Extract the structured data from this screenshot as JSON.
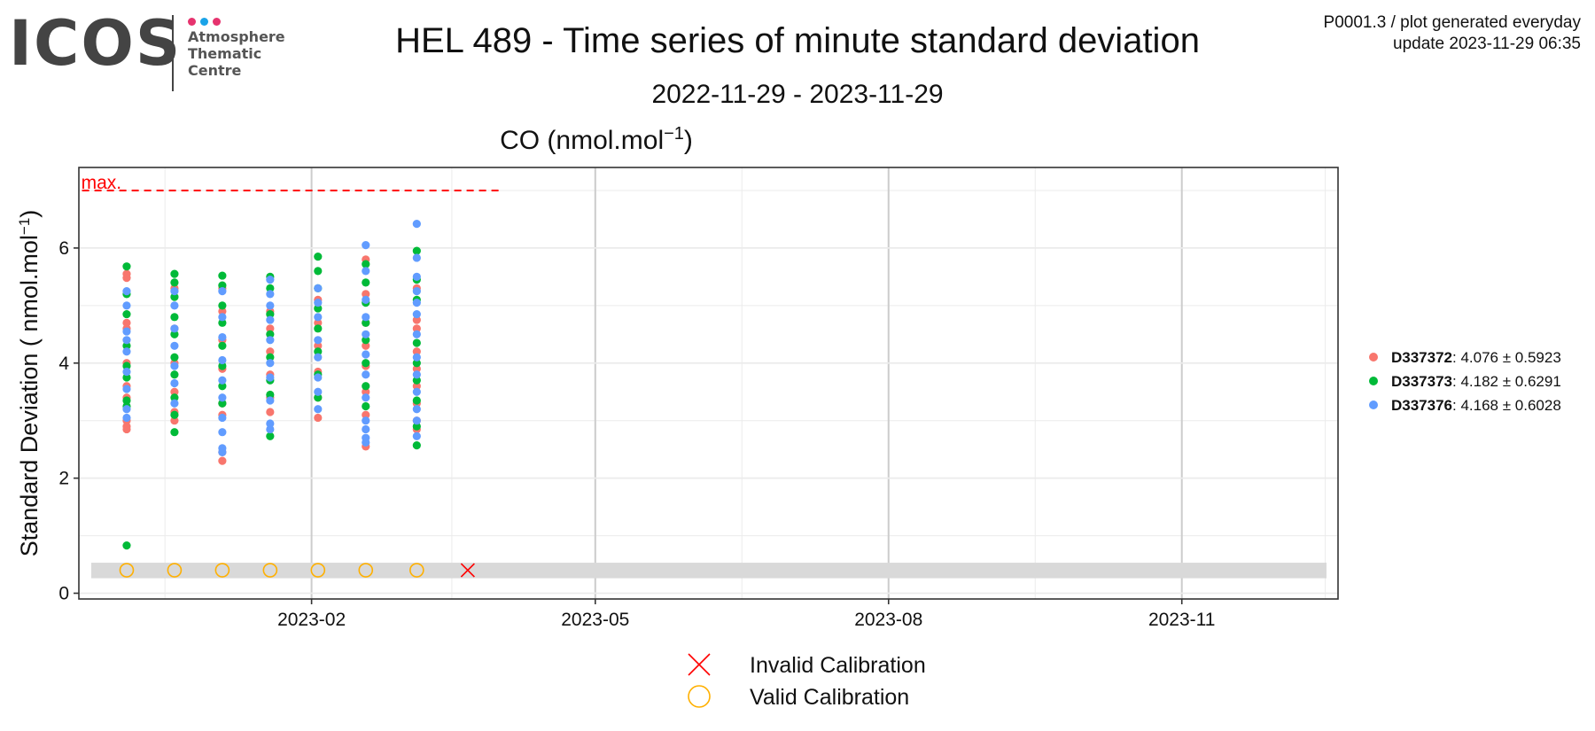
{
  "logo": {
    "wordmark": "ICOS",
    "line1": "Atmosphere",
    "line2": "Thematic",
    "line3": "Centre",
    "dot_colors": [
      "#e6336e",
      "#1aa3e8",
      "#e6336e"
    ]
  },
  "header": {
    "title": "HEL 489 - Time series of minute standard deviation",
    "subtitle": "2022-11-29 - 2023-11-29",
    "corner_line1": "P0001.3 / plot generated everyday",
    "corner_line2": "update  2023-11-29 06:35"
  },
  "chart_data": {
    "type": "scatter",
    "title": "CO (nmol.mol",
    "title_superscript": "−1",
    "title_suffix": ")",
    "ylabel": "Standard Deviation ( nmol.mol",
    "ylabel_superscript": "−1",
    "ylabel_suffix": ")",
    "xlim": [
      "2022-11-20",
      "2023-12-20"
    ],
    "ylim": [
      -0.1,
      7.4
    ],
    "x_ticks": [
      "2023-02-01",
      "2023-05-01",
      "2023-08-01",
      "2023-11-01"
    ],
    "x_tick_labels": [
      "2023-02",
      "2023-05",
      "2023-08",
      "2023-11"
    ],
    "y_ticks": [
      0,
      2,
      4,
      6
    ],
    "grid": true,
    "legend_position": "right",
    "max_line": {
      "label": "max.",
      "y": 7.0,
      "x_start": "2022-11-21",
      "x_end": "2023-04-01",
      "color": "#ff0000"
    },
    "calibration_band": {
      "y_min": 0.26,
      "y_max": 0.53,
      "color": "#d9d9d9"
    },
    "series": [
      {
        "name": "D337372",
        "stats": ": 4.076 ± 0.5923",
        "color": "#f8766d",
        "points": [
          [
            "2022-12-05",
            5.55
          ],
          [
            "2022-12-05",
            5.48
          ],
          [
            "2022-12-05",
            4.7
          ],
          [
            "2022-12-05",
            4.6
          ],
          [
            "2022-12-05",
            4.0
          ],
          [
            "2022-12-05",
            3.6
          ],
          [
            "2022-12-05",
            3.4
          ],
          [
            "2022-12-05",
            3.0
          ],
          [
            "2022-12-05",
            2.9
          ],
          [
            "2022-12-05",
            2.85
          ],
          [
            "2022-12-20",
            5.3
          ],
          [
            "2022-12-20",
            4.6
          ],
          [
            "2022-12-20",
            4.0
          ],
          [
            "2022-12-20",
            3.5
          ],
          [
            "2022-12-20",
            3.15
          ],
          [
            "2022-12-20",
            3.0
          ],
          [
            "2023-01-04",
            5.3
          ],
          [
            "2023-01-04",
            4.9
          ],
          [
            "2023-01-04",
            4.4
          ],
          [
            "2023-01-04",
            3.9
          ],
          [
            "2023-01-04",
            3.3
          ],
          [
            "2023-01-04",
            3.1
          ],
          [
            "2023-01-04",
            2.45
          ],
          [
            "2023-01-04",
            2.3
          ],
          [
            "2023-01-19",
            4.9
          ],
          [
            "2023-01-19",
            4.6
          ],
          [
            "2023-01-19",
            4.2
          ],
          [
            "2023-01-19",
            3.8
          ],
          [
            "2023-01-19",
            3.4
          ],
          [
            "2023-01-19",
            3.15
          ],
          [
            "2023-02-03",
            5.1
          ],
          [
            "2023-02-03",
            4.7
          ],
          [
            "2023-02-03",
            4.3
          ],
          [
            "2023-02-03",
            3.85
          ],
          [
            "2023-02-03",
            3.4
          ],
          [
            "2023-02-03",
            3.05
          ],
          [
            "2023-02-18",
            5.8
          ],
          [
            "2023-02-18",
            5.2
          ],
          [
            "2023-02-18",
            4.7
          ],
          [
            "2023-02-18",
            4.3
          ],
          [
            "2023-02-18",
            3.95
          ],
          [
            "2023-02-18",
            3.5
          ],
          [
            "2023-02-18",
            3.1
          ],
          [
            "2023-02-18",
            2.55
          ],
          [
            "2023-03-06",
            5.3
          ],
          [
            "2023-03-06",
            4.75
          ],
          [
            "2023-03-06",
            4.6
          ],
          [
            "2023-03-06",
            4.2
          ],
          [
            "2023-03-06",
            3.9
          ],
          [
            "2023-03-06",
            3.6
          ],
          [
            "2023-03-06",
            3.3
          ],
          [
            "2023-03-06",
            3.0
          ],
          [
            "2023-03-06",
            2.85
          ]
        ]
      },
      {
        "name": "D337373",
        "stats": ": 4.182 ± 0.6291",
        "color": "#00ba38",
        "points": [
          [
            "2022-12-05",
            5.68
          ],
          [
            "2022-12-05",
            5.2
          ],
          [
            "2022-12-05",
            4.85
          ],
          [
            "2022-12-05",
            4.3
          ],
          [
            "2022-12-05",
            3.95
          ],
          [
            "2022-12-05",
            3.75
          ],
          [
            "2022-12-05",
            3.35
          ],
          [
            "2022-12-05",
            3.25
          ],
          [
            "2022-12-05",
            0.83
          ],
          [
            "2022-12-20",
            5.55
          ],
          [
            "2022-12-20",
            5.4
          ],
          [
            "2022-12-20",
            5.15
          ],
          [
            "2022-12-20",
            4.8
          ],
          [
            "2022-12-20",
            4.5
          ],
          [
            "2022-12-20",
            4.1
          ],
          [
            "2022-12-20",
            3.8
          ],
          [
            "2022-12-20",
            3.4
          ],
          [
            "2022-12-20",
            3.1
          ],
          [
            "2022-12-20",
            2.8
          ],
          [
            "2023-01-04",
            5.52
          ],
          [
            "2023-01-04",
            5.35
          ],
          [
            "2023-01-04",
            5.0
          ],
          [
            "2023-01-04",
            4.7
          ],
          [
            "2023-01-04",
            4.3
          ],
          [
            "2023-01-04",
            3.95
          ],
          [
            "2023-01-04",
            3.6
          ],
          [
            "2023-01-04",
            3.3
          ],
          [
            "2023-01-19",
            5.5
          ],
          [
            "2023-01-19",
            5.3
          ],
          [
            "2023-01-19",
            4.85
          ],
          [
            "2023-01-19",
            4.5
          ],
          [
            "2023-01-19",
            4.1
          ],
          [
            "2023-01-19",
            3.7
          ],
          [
            "2023-01-19",
            3.45
          ],
          [
            "2023-01-19",
            2.73
          ],
          [
            "2023-02-03",
            5.85
          ],
          [
            "2023-02-03",
            5.6
          ],
          [
            "2023-02-03",
            5.3
          ],
          [
            "2023-02-03",
            4.95
          ],
          [
            "2023-02-03",
            4.6
          ],
          [
            "2023-02-03",
            4.2
          ],
          [
            "2023-02-03",
            3.8
          ],
          [
            "2023-02-03",
            3.4
          ],
          [
            "2023-02-18",
            5.72
          ],
          [
            "2023-02-18",
            5.4
          ],
          [
            "2023-02-18",
            5.05
          ],
          [
            "2023-02-18",
            4.7
          ],
          [
            "2023-02-18",
            4.4
          ],
          [
            "2023-02-18",
            4.0
          ],
          [
            "2023-02-18",
            3.6
          ],
          [
            "2023-02-18",
            3.25
          ],
          [
            "2023-03-06",
            5.95
          ],
          [
            "2023-03-06",
            5.45
          ],
          [
            "2023-03-06",
            5.1
          ],
          [
            "2023-03-06",
            4.35
          ],
          [
            "2023-03-06",
            4.0
          ],
          [
            "2023-03-06",
            3.7
          ],
          [
            "2023-03-06",
            3.35
          ],
          [
            "2023-03-06",
            2.9
          ],
          [
            "2023-03-06",
            2.57
          ]
        ]
      },
      {
        "name": "D337376",
        "stats": ": 4.168 ± 0.6028",
        "color": "#619cff",
        "points": [
          [
            "2022-12-05",
            5.25
          ],
          [
            "2022-12-05",
            5.0
          ],
          [
            "2022-12-05",
            4.55
          ],
          [
            "2022-12-05",
            4.4
          ],
          [
            "2022-12-05",
            4.2
          ],
          [
            "2022-12-05",
            3.85
          ],
          [
            "2022-12-05",
            3.55
          ],
          [
            "2022-12-05",
            3.2
          ],
          [
            "2022-12-05",
            3.05
          ],
          [
            "2022-12-20",
            5.25
          ],
          [
            "2022-12-20",
            5.0
          ],
          [
            "2022-12-20",
            4.6
          ],
          [
            "2022-12-20",
            4.3
          ],
          [
            "2022-12-20",
            3.95
          ],
          [
            "2022-12-20",
            3.65
          ],
          [
            "2022-12-20",
            3.3
          ],
          [
            "2023-01-04",
            5.25
          ],
          [
            "2023-01-04",
            4.8
          ],
          [
            "2023-01-04",
            4.45
          ],
          [
            "2023-01-04",
            4.05
          ],
          [
            "2023-01-04",
            3.7
          ],
          [
            "2023-01-04",
            3.4
          ],
          [
            "2023-01-04",
            3.05
          ],
          [
            "2023-01-04",
            2.8
          ],
          [
            "2023-01-04",
            2.52
          ],
          [
            "2023-01-04",
            2.45
          ],
          [
            "2023-01-19",
            5.45
          ],
          [
            "2023-01-19",
            5.2
          ],
          [
            "2023-01-19",
            5.0
          ],
          [
            "2023-01-19",
            4.75
          ],
          [
            "2023-01-19",
            4.4
          ],
          [
            "2023-01-19",
            4.0
          ],
          [
            "2023-01-19",
            3.75
          ],
          [
            "2023-01-19",
            3.35
          ],
          [
            "2023-01-19",
            2.95
          ],
          [
            "2023-01-19",
            2.85
          ],
          [
            "2023-02-03",
            5.3
          ],
          [
            "2023-02-03",
            5.05
          ],
          [
            "2023-02-03",
            4.8
          ],
          [
            "2023-02-03",
            4.4
          ],
          [
            "2023-02-03",
            4.1
          ],
          [
            "2023-02-03",
            3.75
          ],
          [
            "2023-02-03",
            3.5
          ],
          [
            "2023-02-03",
            3.2
          ],
          [
            "2023-02-18",
            6.05
          ],
          [
            "2023-02-18",
            5.6
          ],
          [
            "2023-02-18",
            5.1
          ],
          [
            "2023-02-18",
            4.8
          ],
          [
            "2023-02-18",
            4.5
          ],
          [
            "2023-02-18",
            4.15
          ],
          [
            "2023-02-18",
            3.8
          ],
          [
            "2023-02-18",
            3.4
          ],
          [
            "2023-02-18",
            3.0
          ],
          [
            "2023-02-18",
            2.85
          ],
          [
            "2023-02-18",
            2.7
          ],
          [
            "2023-02-18",
            2.62
          ],
          [
            "2023-03-06",
            6.42
          ],
          [
            "2023-03-06",
            5.83
          ],
          [
            "2023-03-06",
            5.5
          ],
          [
            "2023-03-06",
            5.25
          ],
          [
            "2023-03-06",
            5.05
          ],
          [
            "2023-03-06",
            4.85
          ],
          [
            "2023-03-06",
            4.5
          ],
          [
            "2023-03-06",
            4.1
          ],
          [
            "2023-03-06",
            3.8
          ],
          [
            "2023-03-06",
            3.5
          ],
          [
            "2023-03-06",
            3.2
          ],
          [
            "2023-03-06",
            3.0
          ],
          [
            "2023-03-06",
            2.73
          ]
        ]
      }
    ],
    "valid_calibrations": {
      "label": "Valid Calibration",
      "color": "#ffb000",
      "dates": [
        "2022-12-05",
        "2022-12-20",
        "2023-01-04",
        "2023-01-19",
        "2023-02-03",
        "2023-02-18",
        "2023-03-06"
      ],
      "y": 0.4
    },
    "invalid_calibrations": {
      "label": "Invalid Calibration",
      "color": "#ff0000",
      "dates": [
        "2023-03-22"
      ],
      "y": 0.4
    }
  }
}
